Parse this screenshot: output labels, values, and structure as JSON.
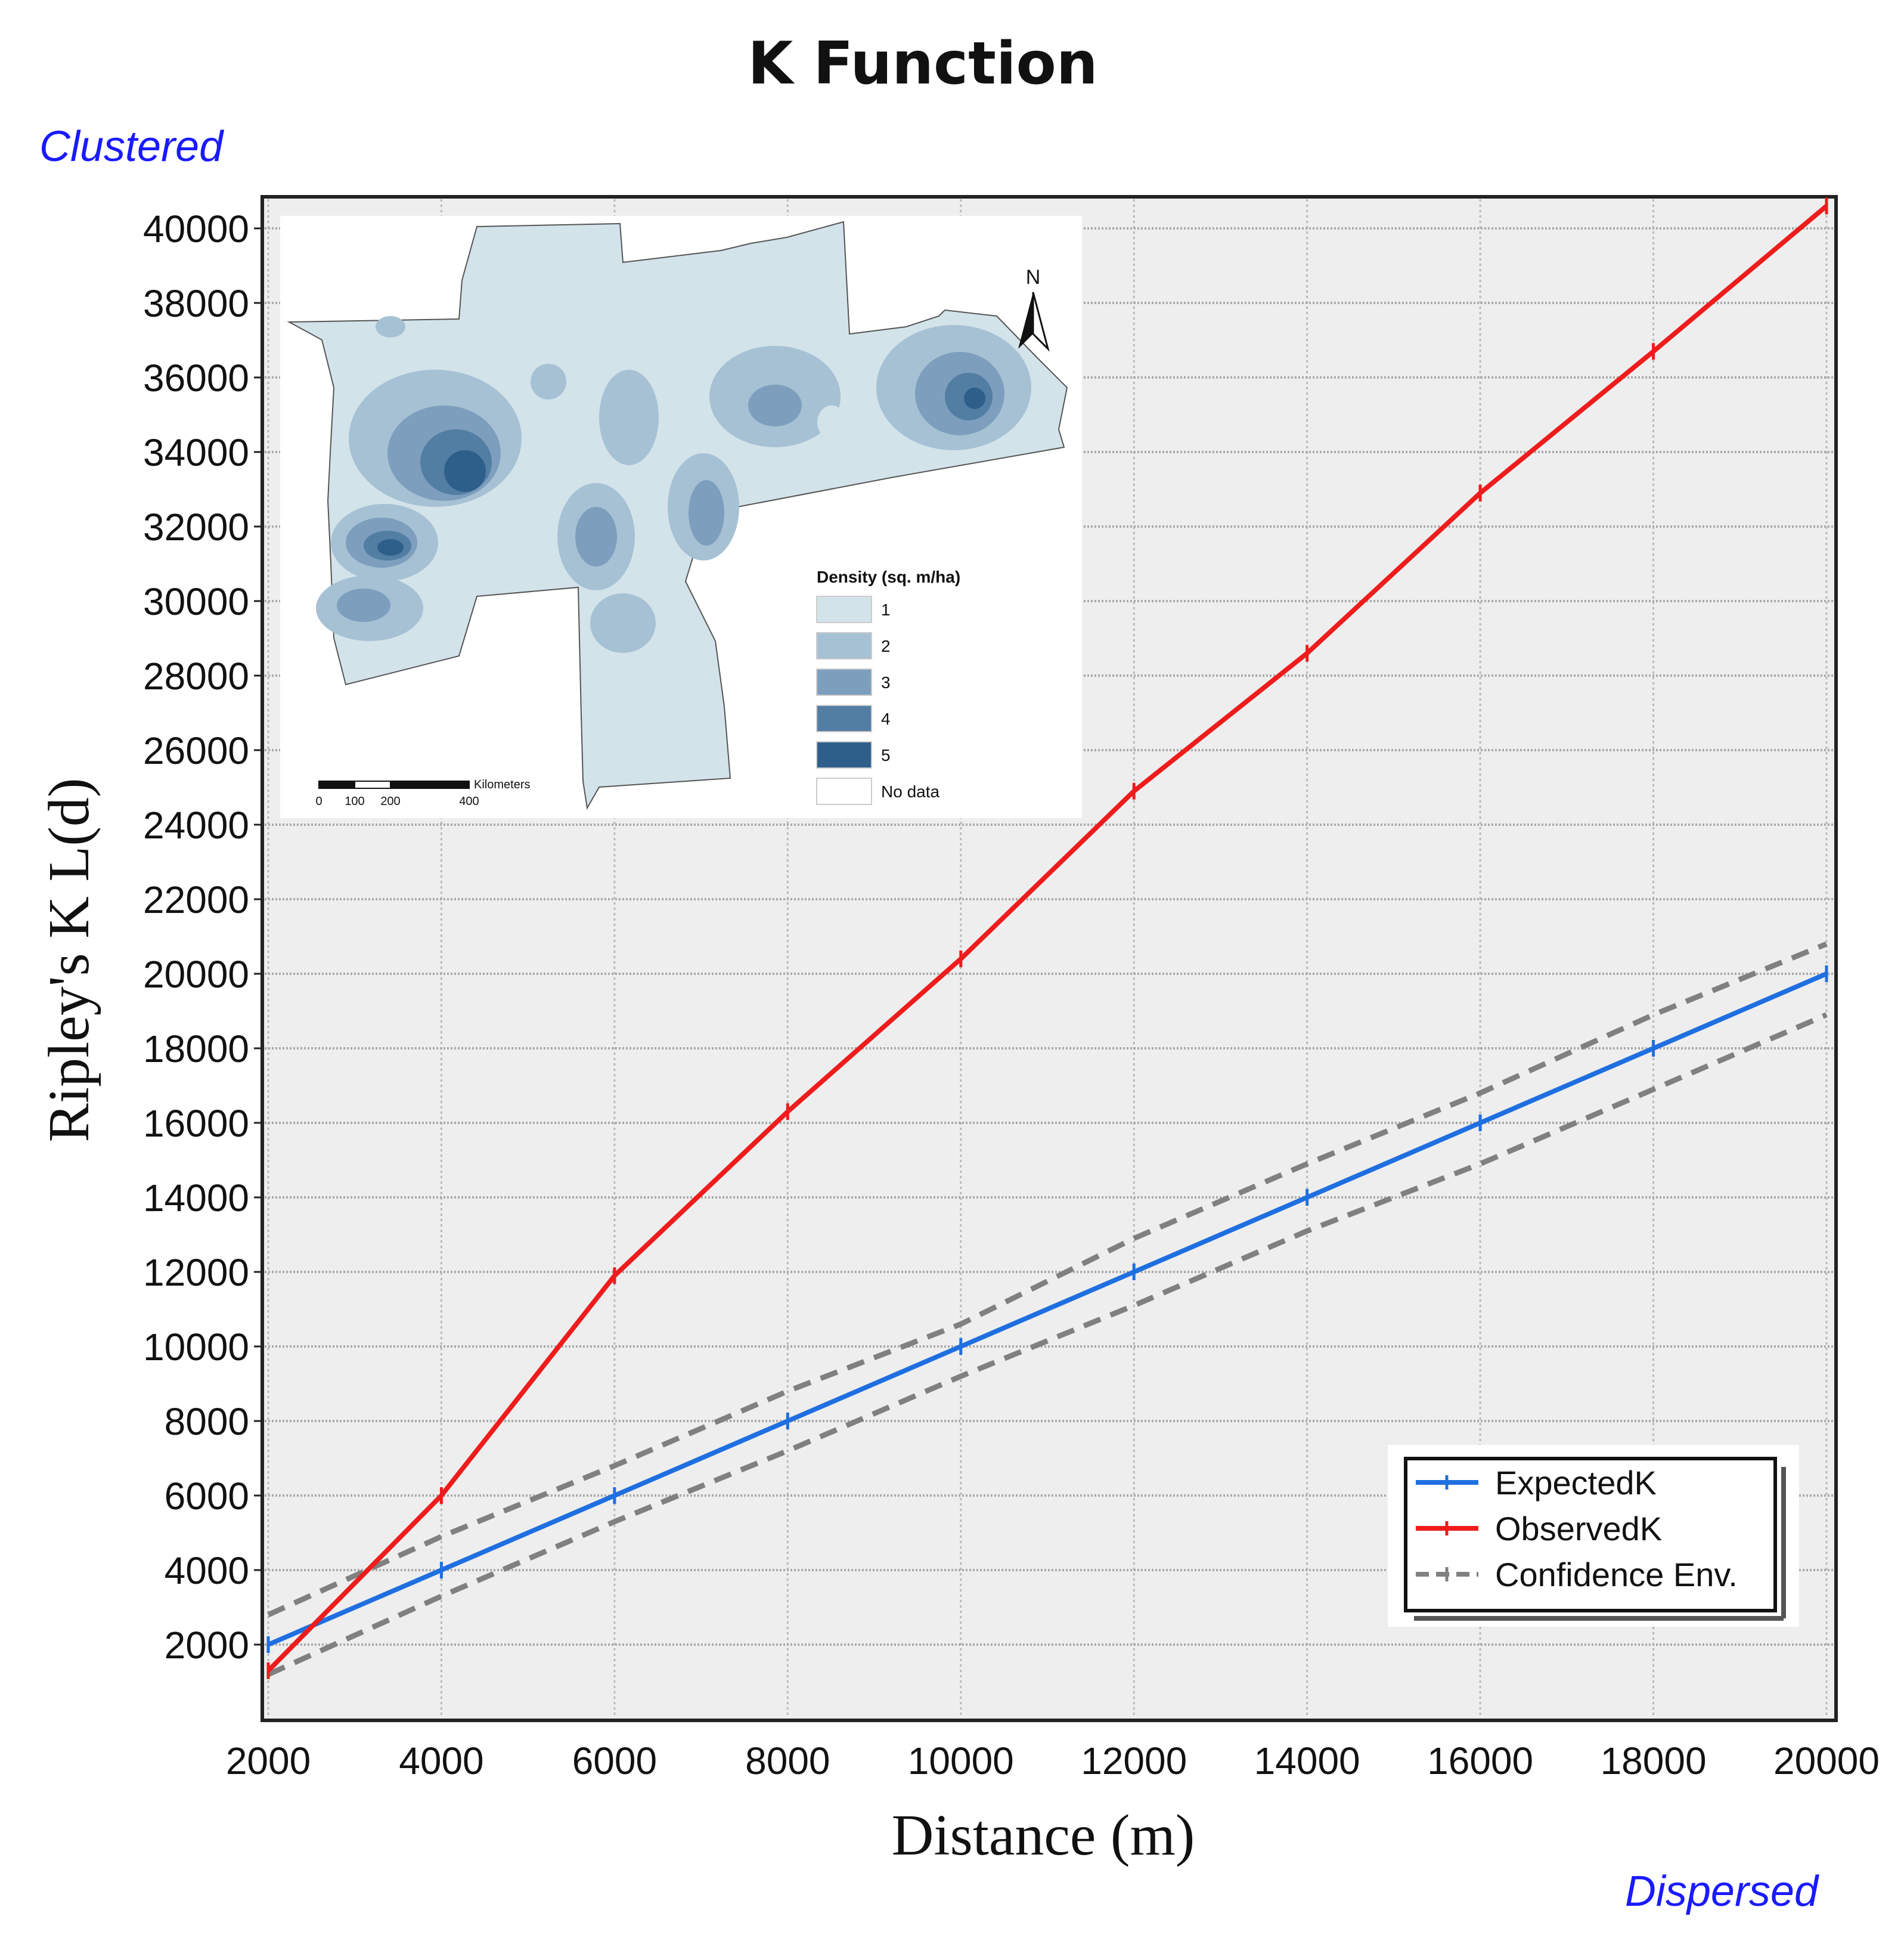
{
  "chart_data": {
    "type": "line",
    "title": "K Function",
    "xlabel": "Distance (m)",
    "ylabel": "Ripley's K L(d)",
    "corner_labels": {
      "top_left": "Clustered",
      "bottom_right": "Dispersed"
    },
    "xlim": [
      2000,
      20000
    ],
    "ylim": [
      0,
      41000
    ],
    "x_ticks": [
      2000,
      4000,
      6000,
      8000,
      10000,
      12000,
      14000,
      16000,
      18000,
      20000
    ],
    "y_ticks": [
      2000,
      4000,
      6000,
      8000,
      10000,
      12000,
      14000,
      16000,
      18000,
      20000,
      22000,
      24000,
      26000,
      28000,
      30000,
      32000,
      34000,
      36000,
      38000,
      40000
    ],
    "x_tick_labels": [
      "2000",
      "4000",
      "6000",
      "8000",
      "10000",
      "12000",
      "14000",
      "16000",
      "18000",
      "20000"
    ],
    "y_tick_labels": [
      "2000",
      "4000",
      "6000",
      "8000",
      "10000",
      "12000",
      "14000",
      "16000",
      "18000",
      "20000",
      "22000",
      "24000",
      "26000",
      "28000",
      "30000",
      "32000",
      "34000",
      "36000",
      "38000",
      "40000"
    ],
    "grid": true,
    "legend_position": "bottom-right",
    "x": [
      2000,
      4000,
      6000,
      8000,
      10000,
      12000,
      14000,
      16000,
      18000,
      20000
    ],
    "series": [
      {
        "name": "ExpectedK",
        "color": "#1f6fe0",
        "style": "solid",
        "values": [
          2000,
          4000,
          6000,
          8000,
          10000,
          12000,
          14000,
          16000,
          18000,
          20000
        ]
      },
      {
        "name": "ObservedK",
        "color": "#ee1c1c",
        "style": "solid",
        "values": [
          1300,
          6000,
          11900,
          16300,
          20400,
          24900,
          28600,
          32900,
          36700,
          40600
        ]
      },
      {
        "name": "Confidence Env.",
        "color": "#808080",
        "style": "dashed",
        "values": [
          2800,
          4900,
          6800,
          8800,
          10600,
          12900,
          14900,
          16800,
          18900,
          20800
        ]
      },
      {
        "name": "",
        "color": "#808080",
        "style": "dashed",
        "values": [
          1200,
          3300,
          5300,
          7200,
          9200,
          11100,
          13100,
          14900,
          16900,
          18900
        ]
      }
    ]
  },
  "inset_map": {
    "legend_title": "Density (sq. m/ha)",
    "legend_items": [
      {
        "label": "1",
        "color": "#d3e3ea"
      },
      {
        "label": "2",
        "color": "#a6c1d4"
      },
      {
        "label": "3",
        "color": "#7d9fbd"
      },
      {
        "label": "4",
        "color": "#537ea3"
      },
      {
        "label": "5",
        "color": "#2e5f8a"
      },
      {
        "label": "No data",
        "color": "#ffffff"
      }
    ],
    "north_label": "N",
    "scale_unit": "Kilometers",
    "scale_ticks": [
      "0",
      "100",
      "200",
      "400"
    ]
  }
}
